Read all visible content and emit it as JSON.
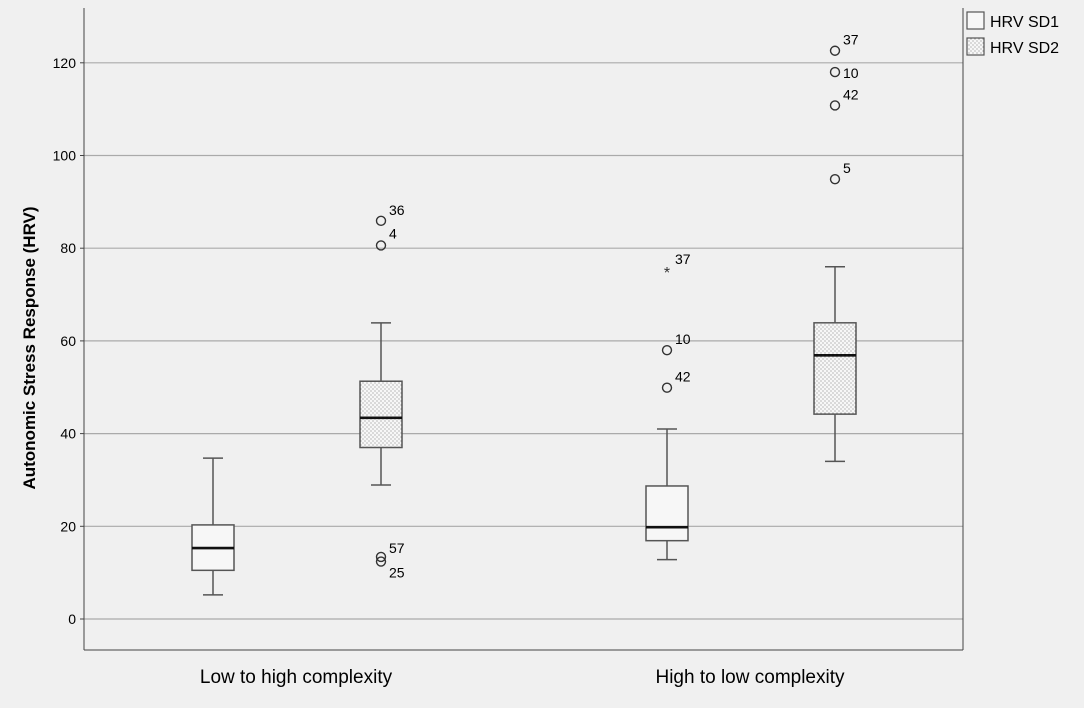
{
  "chart_data": {
    "type": "boxplot",
    "ylabel": "Autonomic Stress Response (HRV)",
    "xlabel": "",
    "ylim": [
      -7,
      133
    ],
    "yticks": [
      0,
      20,
      40,
      60,
      80,
      100,
      120
    ],
    "grid": "horizontal",
    "legend_position": "top-right",
    "categories": [
      "Low to high complexity",
      "High to low complexity"
    ],
    "series": [
      {
        "name": "HRV SD1",
        "fill": "plain",
        "boxes": [
          {
            "category": "Low to high complexity",
            "whisker_low": 5.2,
            "q1": 10.5,
            "median": 15.3,
            "q3": 20.3,
            "whisker_high": 34.7,
            "outliers": []
          },
          {
            "category": "High to low complexity",
            "whisker_low": 12.8,
            "q1": 16.9,
            "median": 19.8,
            "q3": 28.7,
            "whisker_high": 41.0,
            "outliers": [
              {
                "value": 75.3,
                "label": "37",
                "marker": "star"
              },
              {
                "value": 58.0,
                "label": "10",
                "marker": "circle"
              },
              {
                "value": 49.9,
                "label": "42",
                "marker": "circle"
              }
            ]
          }
        ]
      },
      {
        "name": "HRV SD2",
        "fill": "dotted",
        "boxes": [
          {
            "category": "Low to high complexity",
            "whisker_low": 28.9,
            "q1": 37.0,
            "median": 43.4,
            "q3": 51.3,
            "whisker_high": 63.9,
            "outliers": [
              {
                "value": 85.9,
                "label": "36",
                "marker": "circle"
              },
              {
                "value": 80.6,
                "label": "4",
                "marker": "circle"
              },
              {
                "value": 13.4,
                "label": "57",
                "marker": "circle"
              },
              {
                "value": 12.4,
                "label": "25",
                "marker": "circle"
              }
            ]
          },
          {
            "category": "High to low complexity",
            "whisker_low": 34.0,
            "q1": 44.2,
            "median": 56.9,
            "q3": 63.9,
            "whisker_high": 76.0,
            "outliers": [
              {
                "value": 122.6,
                "label": "37",
                "marker": "circle"
              },
              {
                "value": 118.0,
                "label": "10",
                "marker": "circle"
              },
              {
                "value": 110.8,
                "label": "42",
                "marker": "circle"
              },
              {
                "value": 94.9,
                "label": "5",
                "marker": "circle"
              }
            ]
          }
        ]
      }
    ]
  },
  "colors": {
    "background": "#f0f0f0",
    "gridline": "#aaaaaa",
    "box_stroke": "#555555",
    "median": "#111111",
    "dot_pattern": "#666666",
    "text": "#000000"
  }
}
